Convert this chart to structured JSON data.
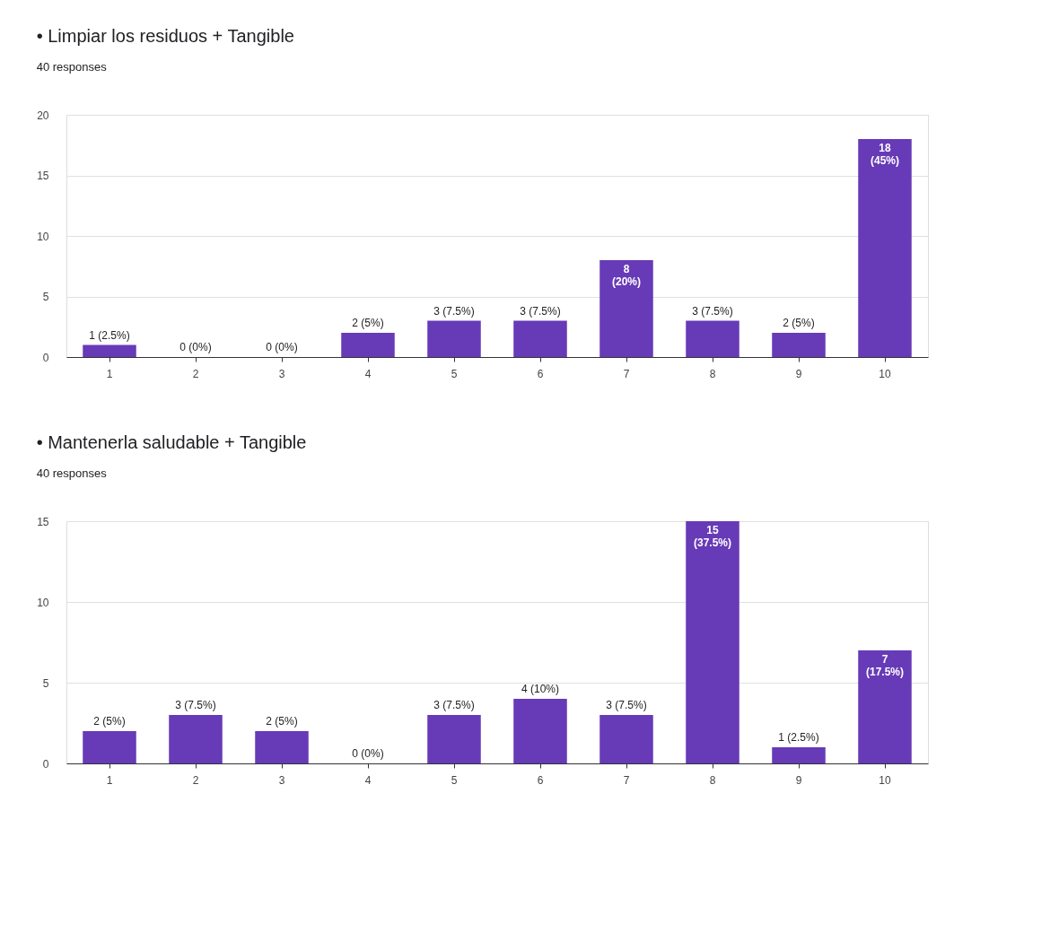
{
  "chart_data": [
    {
      "type": "bar",
      "title": "• Limpiar los residuos + Tangible",
      "subtitle": "40 responses",
      "categories": [
        "1",
        "2",
        "3",
        "4",
        "5",
        "6",
        "7",
        "8",
        "9",
        "10"
      ],
      "values": [
        1,
        0,
        0,
        2,
        3,
        3,
        8,
        3,
        2,
        18
      ],
      "value_labels": [
        "1 (2.5%)",
        "0 (0%)",
        "0 (0%)",
        "2 (5%)",
        "3 (7.5%)",
        "3 (7.5%)",
        "8 (20%)",
        "3 (7.5%)",
        "2 (5%)",
        "18 (45%)"
      ],
      "color": "#673ab7",
      "ylim": [
        0,
        20
      ],
      "yticks": [
        0,
        5,
        10,
        15,
        20
      ],
      "grid": "y",
      "legend": false
    },
    {
      "type": "bar",
      "title": "• Mantenerla saludable + Tangible",
      "subtitle": "40 responses",
      "categories": [
        "1",
        "2",
        "3",
        "4",
        "5",
        "6",
        "7",
        "8",
        "9",
        "10"
      ],
      "values": [
        2,
        3,
        2,
        0,
        3,
        4,
        3,
        15,
        1,
        7
      ],
      "value_labels": [
        "2 (5%)",
        "3 (7.5%)",
        "2 (5%)",
        "0 (0%)",
        "3 (7.5%)",
        "4 (10%)",
        "3 (7.5%)",
        "15 (37.5%)",
        "1 (2.5%)",
        "7 (17.5%)"
      ],
      "color": "#673ab7",
      "ylim": [
        0,
        15
      ],
      "yticks": [
        0,
        5,
        10,
        15
      ],
      "grid": "y",
      "legend": false
    }
  ]
}
